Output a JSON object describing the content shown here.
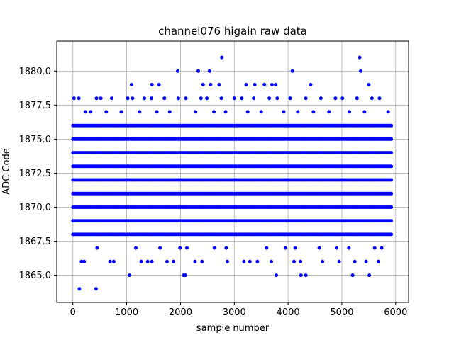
{
  "chart_data": {
    "type": "scatter",
    "title": "channel076 higain raw data",
    "xlabel": "sample number",
    "ylabel": "ADC Code",
    "xlim": [
      -300,
      6240
    ],
    "ylim": [
      1863.0,
      1882.2
    ],
    "xticks": [
      0,
      1000,
      2000,
      3000,
      4000,
      5000,
      6000
    ],
    "xtick_labels": [
      "0",
      "1000",
      "2000",
      "3000",
      "4000",
      "5000",
      "6000"
    ],
    "yticks": [
      1865.0,
      1867.5,
      1870.0,
      1872.5,
      1875.0,
      1877.5,
      1880.0
    ],
    "ytick_labels": [
      "1865.0",
      "1867.5",
      "1870.0",
      "1872.5",
      "1875.0",
      "1877.5",
      "1880.0"
    ],
    "grid": true,
    "marker_color": "#0000ff",
    "dense_bands": [
      {
        "y": 1868,
        "x_range": [
          0,
          5940
        ]
      },
      {
        "y": 1869,
        "x_range": [
          0,
          5940
        ]
      },
      {
        "y": 1870,
        "x_range": [
          0,
          5940
        ]
      },
      {
        "y": 1871,
        "x_range": [
          0,
          5940
        ]
      },
      {
        "y": 1872,
        "x_range": [
          0,
          5940
        ]
      },
      {
        "y": 1873,
        "x_range": [
          0,
          5940
        ]
      },
      {
        "y": 1874,
        "x_range": [
          0,
          5940
        ]
      },
      {
        "y": 1875,
        "x_range": [
          0,
          5940
        ]
      },
      {
        "y": 1876,
        "x_range": [
          0,
          5940
        ]
      }
    ],
    "points": [
      [
        20,
        1878
      ],
      [
        110,
        1878
      ],
      [
        230,
        1877
      ],
      [
        330,
        1877
      ],
      [
        440,
        1878
      ],
      [
        520,
        1878
      ],
      [
        620,
        1877
      ],
      [
        720,
        1878
      ],
      [
        900,
        1877
      ],
      [
        1020,
        1878
      ],
      [
        1110,
        1878
      ],
      [
        1240,
        1877
      ],
      [
        1330,
        1878
      ],
      [
        1460,
        1878
      ],
      [
        1560,
        1877
      ],
      [
        1700,
        1878
      ],
      [
        1800,
        1877
      ],
      [
        1960,
        1878
      ],
      [
        2100,
        1878
      ],
      [
        2280,
        1877
      ],
      [
        2380,
        1878
      ],
      [
        2490,
        1878
      ],
      [
        2620,
        1877
      ],
      [
        2760,
        1878
      ],
      [
        2840,
        1877
      ],
      [
        3000,
        1878
      ],
      [
        3140,
        1878
      ],
      [
        3250,
        1877
      ],
      [
        3360,
        1878
      ],
      [
        3500,
        1877
      ],
      [
        3650,
        1878
      ],
      [
        3800,
        1878
      ],
      [
        3920,
        1877
      ],
      [
        4040,
        1878
      ],
      [
        4180,
        1877
      ],
      [
        4330,
        1878
      ],
      [
        4470,
        1877
      ],
      [
        4610,
        1878
      ],
      [
        4760,
        1877
      ],
      [
        4880,
        1878
      ],
      [
        5010,
        1878
      ],
      [
        5140,
        1877
      ],
      [
        5280,
        1878
      ],
      [
        5420,
        1877
      ],
      [
        5560,
        1878
      ],
      [
        5700,
        1878
      ],
      [
        5860,
        1877
      ],
      [
        1090,
        1879
      ],
      [
        1470,
        1879
      ],
      [
        1600,
        1879
      ],
      [
        2420,
        1879
      ],
      [
        2560,
        1879
      ],
      [
        2720,
        1879
      ],
      [
        3220,
        1879
      ],
      [
        3380,
        1879
      ],
      [
        3560,
        1879
      ],
      [
        3700,
        1879
      ],
      [
        3770,
        1879
      ],
      [
        4420,
        1879
      ],
      [
        5500,
        1879
      ],
      [
        1950,
        1880
      ],
      [
        2330,
        1880
      ],
      [
        2540,
        1880
      ],
      [
        4080,
        1880
      ],
      [
        5350,
        1880
      ],
      [
        2770,
        1881
      ],
      [
        5330,
        1881
      ],
      [
        450,
        1867
      ],
      [
        1170,
        1867
      ],
      [
        1620,
        1867
      ],
      [
        1990,
        1867
      ],
      [
        2120,
        1867
      ],
      [
        2630,
        1867
      ],
      [
        2850,
        1867
      ],
      [
        3600,
        1867
      ],
      [
        3950,
        1867
      ],
      [
        4130,
        1867
      ],
      [
        4580,
        1867
      ],
      [
        4900,
        1867
      ],
      [
        5130,
        1867
      ],
      [
        5610,
        1867
      ],
      [
        5740,
        1867
      ],
      [
        160,
        1866
      ],
      [
        210,
        1866
      ],
      [
        690,
        1866
      ],
      [
        760,
        1866
      ],
      [
        1270,
        1866
      ],
      [
        1390,
        1866
      ],
      [
        1470,
        1866
      ],
      [
        1750,
        1866
      ],
      [
        1870,
        1866
      ],
      [
        2270,
        1866
      ],
      [
        2400,
        1866
      ],
      [
        2870,
        1866
      ],
      [
        3180,
        1866
      ],
      [
        3290,
        1866
      ],
      [
        3430,
        1866
      ],
      [
        3690,
        1866
      ],
      [
        4110,
        1866
      ],
      [
        4230,
        1866
      ],
      [
        4640,
        1866
      ],
      [
        4950,
        1866
      ],
      [
        5240,
        1866
      ],
      [
        5450,
        1866
      ],
      [
        5680,
        1866
      ],
      [
        1050,
        1865
      ],
      [
        2060,
        1865
      ],
      [
        2090,
        1865
      ],
      [
        3780,
        1865
      ],
      [
        4240,
        1865
      ],
      [
        4330,
        1865
      ],
      [
        5200,
        1865
      ],
      [
        5510,
        1865
      ],
      [
        120,
        1864
      ],
      [
        430,
        1864
      ]
    ]
  }
}
